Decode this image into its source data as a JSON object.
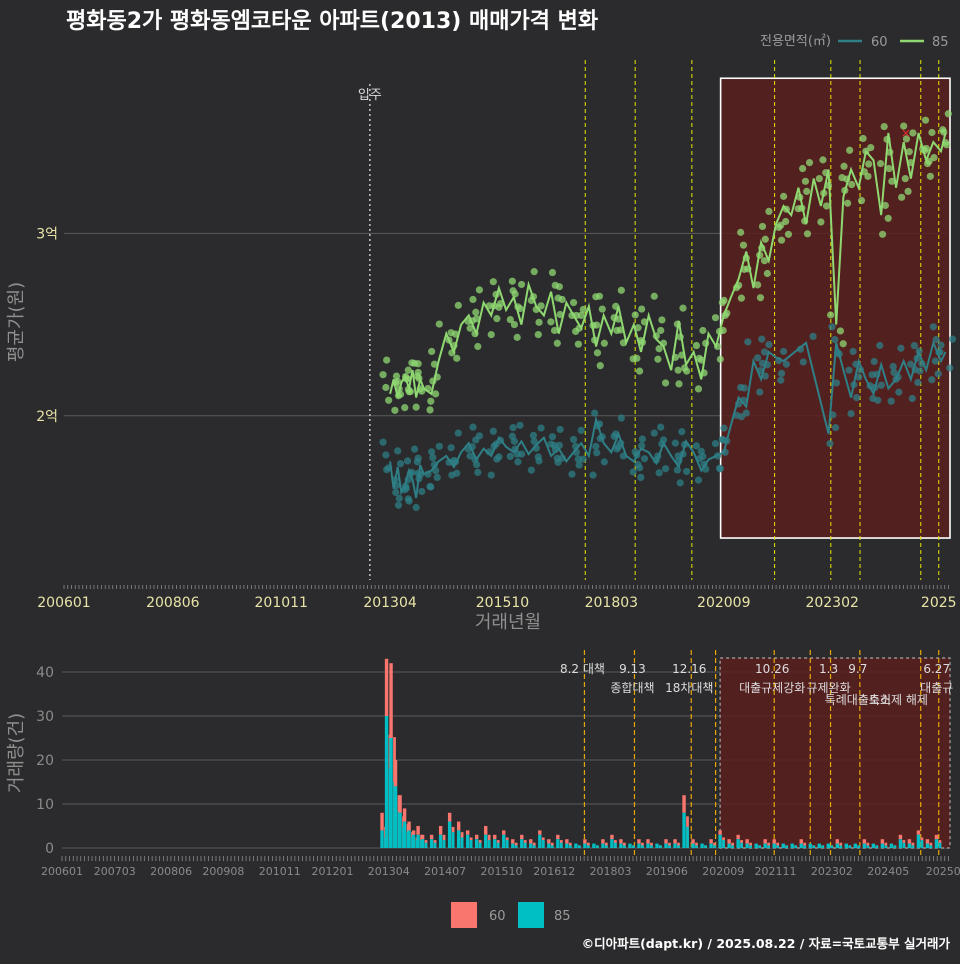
{
  "title": "평화동2가 평화동엠코타운 아파트(2013) 매매가격 변화",
  "footer": "©디아파트(dapt.kr) / 2025.08.22 / 자료=국토교통부 실거래가",
  "colors": {
    "bg": "#2b2b2d",
    "grid": "#5a5a5a",
    "series60": "#2e7f86",
    "series85": "#8fd871",
    "bar60": "#f8766d",
    "bar85": "#00bfc4",
    "vline": "#e6e600",
    "vline_bar": "#e6a800",
    "highlight_fill": "#5a1e1e",
    "movein": "#bbbbbb"
  },
  "chart_data": [
    {
      "type": "line",
      "title": "평화동2가 평화동엠코타운 아파트(2013) 매매가격 변화",
      "xlabel": "거래년월",
      "ylabel": "평균가(원)",
      "x_ticks": [
        "200601",
        "200806",
        "201011",
        "201304",
        "201510",
        "201803",
        "202009",
        "202302",
        "2025"
      ],
      "y_ticks": [
        {
          "value": 2.0,
          "label": "2억"
        },
        {
          "value": 3.0,
          "label": "3억"
        }
      ],
      "ylim": [
        1.1,
        3.95
      ],
      "xlim": [
        2006.0,
        2025.7
      ],
      "grid": true,
      "legend": {
        "title": "전용면적(㎡)",
        "position": "top-right",
        "entries": [
          "60",
          "85"
        ]
      },
      "movein": {
        "x": 2012.8,
        "label": "입주"
      },
      "policy_lines": [
        2017.59,
        2018.7,
        2019.96,
        2021.8,
        2023.05,
        2023.7,
        2025.05,
        2025.45
      ],
      "highlight_box": {
        "x0": 2020.6,
        "x1": 2025.7,
        "y0": 1.33,
        "y1": 3.85
      },
      "marker_x": {
        "x": 2024.72,
        "y": 3.55
      },
      "series": [
        {
          "name": "60",
          "x": [
            2013.25,
            2013.33,
            2013.42,
            2013.5,
            2013.58,
            2013.67,
            2013.75,
            2013.83,
            2013.92,
            2014.0,
            2014.17,
            2014.33,
            2014.5,
            2014.67,
            2014.83,
            2015.0,
            2015.17,
            2015.33,
            2015.5,
            2015.67,
            2015.83,
            2016.0,
            2016.17,
            2016.33,
            2016.5,
            2016.67,
            2016.83,
            2017.0,
            2017.17,
            2017.33,
            2017.5,
            2017.67,
            2017.83,
            2018.0,
            2018.17,
            2018.33,
            2018.5,
            2018.67,
            2018.83,
            2019.0,
            2019.17,
            2019.33,
            2019.5,
            2019.67,
            2019.83,
            2020.0,
            2020.17,
            2020.33,
            2020.5,
            2020.67,
            2020.83,
            2021.0,
            2021.17,
            2021.33,
            2021.5,
            2021.67,
            2021.83,
            2022.0,
            2022.5,
            2023.0,
            2023.17,
            2023.33,
            2023.5,
            2023.67,
            2023.83,
            2024.0,
            2024.17,
            2024.33,
            2024.5,
            2024.67,
            2024.83,
            2025.0,
            2025.17,
            2025.33,
            2025.5,
            2025.6
          ],
          "values": [
            1.75,
            1.6,
            1.72,
            1.58,
            1.62,
            1.7,
            1.65,
            1.55,
            1.73,
            1.68,
            1.7,
            1.75,
            1.78,
            1.72,
            1.8,
            1.85,
            1.76,
            1.82,
            1.78,
            1.88,
            1.83,
            1.8,
            1.86,
            1.79,
            1.84,
            1.88,
            1.78,
            1.82,
            1.75,
            1.8,
            1.85,
            1.78,
            1.98,
            1.85,
            1.8,
            1.9,
            1.78,
            1.75,
            1.82,
            1.8,
            1.74,
            1.85,
            1.78,
            1.72,
            1.86,
            1.8,
            1.7,
            1.76,
            1.78,
            1.8,
            1.95,
            2.1,
            2.05,
            2.3,
            2.2,
            2.35,
            2.32,
            2.3,
            2.4,
            1.9,
            2.4,
            2.25,
            2.1,
            2.3,
            2.2,
            2.12,
            2.28,
            2.15,
            2.2,
            2.3,
            2.2,
            2.35,
            2.25,
            2.4,
            2.3,
            2.35
          ]
        },
        {
          "name": "85",
          "x": [
            2013.25,
            2013.33,
            2013.42,
            2013.5,
            2013.58,
            2013.67,
            2013.75,
            2013.83,
            2013.92,
            2014.0,
            2014.17,
            2014.33,
            2014.5,
            2014.67,
            2014.83,
            2015.0,
            2015.17,
            2015.33,
            2015.5,
            2015.67,
            2015.83,
            2016.0,
            2016.17,
            2016.33,
            2016.5,
            2016.67,
            2016.83,
            2017.0,
            2017.17,
            2017.33,
            2017.5,
            2017.67,
            2017.83,
            2018.0,
            2018.17,
            2018.33,
            2018.5,
            2018.67,
            2018.83,
            2019.0,
            2019.17,
            2019.33,
            2019.5,
            2019.67,
            2019.83,
            2020.0,
            2020.17,
            2020.33,
            2020.5,
            2020.67,
            2020.83,
            2021.0,
            2021.17,
            2021.33,
            2021.5,
            2021.67,
            2021.83,
            2022.0,
            2022.17,
            2022.33,
            2022.5,
            2022.67,
            2022.83,
            2023.0,
            2023.17,
            2023.33,
            2023.5,
            2023.67,
            2023.83,
            2024.0,
            2024.17,
            2024.33,
            2024.5,
            2024.67,
            2024.83,
            2025.0,
            2025.17,
            2025.33,
            2025.5,
            2025.6
          ],
          "values": [
            2.12,
            2.2,
            2.1,
            2.18,
            2.22,
            2.15,
            2.25,
            2.1,
            2.2,
            2.15,
            2.12,
            2.3,
            2.45,
            2.35,
            2.5,
            2.55,
            2.45,
            2.62,
            2.55,
            2.7,
            2.58,
            2.65,
            2.5,
            2.72,
            2.6,
            2.55,
            2.68,
            2.45,
            2.62,
            2.55,
            2.48,
            2.6,
            2.38,
            2.55,
            2.45,
            2.6,
            2.4,
            2.5,
            2.35,
            2.55,
            2.42,
            2.38,
            2.25,
            2.52,
            2.28,
            2.35,
            2.2,
            2.45,
            2.38,
            2.55,
            2.65,
            2.75,
            2.9,
            2.7,
            2.95,
            2.85,
            3.05,
            3.15,
            3.1,
            3.25,
            3.05,
            3.3,
            3.15,
            3.35,
            2.5,
            3.2,
            3.35,
            3.25,
            3.45,
            3.4,
            3.1,
            3.55,
            3.25,
            3.5,
            3.3,
            3.55,
            3.4,
            3.5,
            3.45,
            3.55
          ]
        }
      ]
    },
    {
      "type": "bar",
      "xlabel": "",
      "ylabel": "거래량(건)",
      "ylim": [
        0,
        45
      ],
      "y_ticks": [
        0,
        10,
        20,
        30,
        40
      ],
      "x_ticks": [
        "200601",
        "200703",
        "200806",
        "200908",
        "201011",
        "201201",
        "201304",
        "201407",
        "201510",
        "201612",
        "201803",
        "201906",
        "202009",
        "202111",
        "202302",
        "202405",
        "20250"
      ],
      "legend": {
        "position": "bottom",
        "entries": [
          "60",
          "85"
        ]
      },
      "policy_lines": [
        2017.59,
        2018.7,
        2019.96,
        2020.5,
        2021.8,
        2022.6,
        2023.05,
        2023.7,
        2025.05,
        2025.45
      ],
      "annotations": [
        {
          "x": 2017.59,
          "lines": [
            "8.2 대책"
          ]
        },
        {
          "x": 2018.7,
          "lines": [
            "9.13",
            "종합대책"
          ]
        },
        {
          "x": 2019.96,
          "lines": [
            "12.16",
            "18차대책"
          ]
        },
        {
          "x": 2021.8,
          "lines": [
            "10.26",
            "대출규제강화"
          ]
        },
        {
          "x": 2023.05,
          "lines": [
            "1.3",
            "규제완화"
          ]
        },
        {
          "x": 2023.7,
          "lines": [
            "9.7",
            "특례대출축소"
          ]
        },
        {
          "x": 2024.6,
          "lines": [
            "",
            "토허제 해제"
          ]
        },
        {
          "x": 2025.45,
          "lines": [
            "6.27",
            "대출규"
          ]
        }
      ],
      "series": [
        {
          "name": "60",
          "x": [
            2013.1,
            2013.2,
            2013.3,
            2013.4,
            2013.5,
            2013.6,
            2013.7,
            2013.8,
            2013.9,
            2014.0,
            2014.2,
            2014.4,
            2014.6,
            2014.8,
            2015.0,
            2015.2,
            2015.4,
            2015.6,
            2015.8,
            2016.0,
            2016.2,
            2016.4,
            2016.6,
            2016.8,
            2017.0,
            2017.2,
            2017.4,
            2017.6,
            2017.8,
            2018.0,
            2018.2,
            2018.4,
            2018.6,
            2018.8,
            2019.0,
            2019.2,
            2019.4,
            2019.6,
            2019.8,
            2020.0,
            2020.2,
            2020.4,
            2020.6,
            2020.8,
            2021.0,
            2021.2,
            2021.4,
            2021.6,
            2021.8,
            2022.0,
            2022.2,
            2022.4,
            2022.6,
            2022.8,
            2023.0,
            2023.2,
            2023.4,
            2023.6,
            2023.8,
            2024.0,
            2024.2,
            2024.4,
            2024.6,
            2024.8,
            2025.0,
            2025.2,
            2025.4
          ],
          "values": [
            8,
            43,
            42,
            20,
            12,
            9,
            6,
            4,
            5,
            3,
            3,
            5,
            8,
            6,
            4,
            3,
            5,
            3,
            4,
            2,
            3,
            2,
            4,
            2,
            3,
            2,
            1,
            2,
            1,
            2,
            3,
            2,
            1,
            2,
            2,
            1,
            2,
            2,
            12,
            2,
            1,
            2,
            4,
            2,
            3,
            2,
            1,
            2,
            2,
            1,
            1,
            2,
            1,
            1,
            1,
            2,
            1,
            1,
            2,
            1,
            2,
            1,
            3,
            2,
            4,
            2,
            3
          ]
        },
        {
          "name": "85",
          "x": [
            2013.1,
            2013.2,
            2013.3,
            2013.4,
            2013.5,
            2013.6,
            2013.7,
            2013.8,
            2013.9,
            2014.0,
            2014.2,
            2014.4,
            2014.6,
            2014.8,
            2015.0,
            2015.2,
            2015.4,
            2015.6,
            2015.8,
            2016.0,
            2016.2,
            2016.4,
            2016.6,
            2016.8,
            2017.0,
            2017.2,
            2017.4,
            2017.6,
            2017.8,
            2018.0,
            2018.2,
            2018.4,
            2018.6,
            2018.8,
            2019.0,
            2019.2,
            2019.4,
            2019.6,
            2019.8,
            2020.0,
            2020.2,
            2020.4,
            2020.6,
            2020.8,
            2021.0,
            2021.2,
            2021.4,
            2021.6,
            2021.8,
            2022.0,
            2022.2,
            2022.4,
            2022.6,
            2022.8,
            2023.0,
            2023.2,
            2023.4,
            2023.6,
            2023.8,
            2024.0,
            2024.2,
            2024.4,
            2024.6,
            2024.8,
            2025.0,
            2025.2,
            2025.4
          ],
          "values": [
            4,
            30,
            25,
            14,
            8,
            6,
            4,
            3,
            3,
            2,
            2,
            3,
            6,
            4,
            3,
            2,
            3,
            2,
            3,
            1,
            2,
            1,
            3,
            1,
            2,
            1,
            1,
            1,
            1,
            1,
            2,
            1,
            1,
            1,
            1,
            1,
            1,
            1,
            8,
            1,
            1,
            1,
            3,
            1,
            2,
            1,
            1,
            1,
            1,
            1,
            1,
            1,
            1,
            1,
            1,
            1,
            1,
            1,
            1,
            1,
            1,
            1,
            2,
            1,
            3,
            1,
            2
          ]
        }
      ]
    }
  ]
}
